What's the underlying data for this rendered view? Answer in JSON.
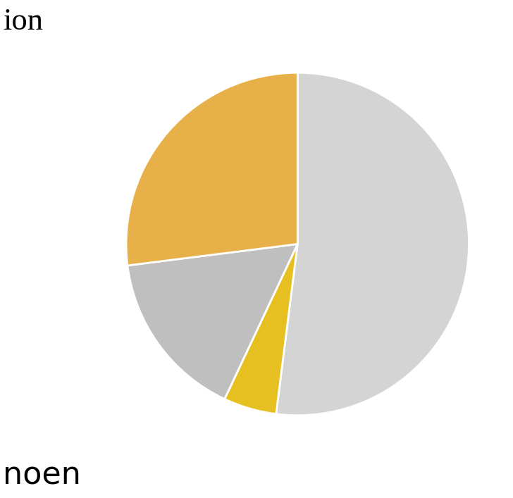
{
  "chart_data": {
    "type": "pie",
    "values": [
      52,
      5,
      16,
      27
    ],
    "colors": [
      "#d4d4d4",
      "#e6c020",
      "#bfbfbf",
      "#e8b048"
    ],
    "annotations": [
      "ion",
      "noen"
    ]
  }
}
